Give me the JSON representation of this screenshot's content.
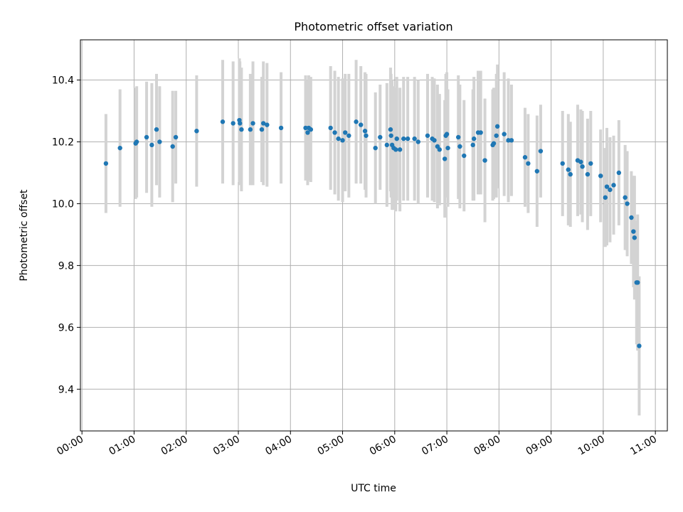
{
  "chart_data": {
    "type": "scatter",
    "title": "Photometric offset variation",
    "xlabel": "UTC time",
    "ylabel": "Photometric offset",
    "xlim": [
      -0.03,
      11.23
    ],
    "ylim": [
      9.265,
      10.53
    ],
    "grid": true,
    "x_unit": "hours (UTC)",
    "xticks": [
      0,
      1,
      2,
      3,
      4,
      5,
      6,
      7,
      8,
      9,
      10,
      11
    ],
    "xtick_labels": [
      "00:00",
      "01:00",
      "02:00",
      "03:00",
      "04:00",
      "05:00",
      "06:00",
      "07:00",
      "08:00",
      "09:00",
      "10:00",
      "11:00"
    ],
    "yticks": [
      9.4,
      9.6,
      9.8,
      10.0,
      10.2,
      10.4
    ],
    "ytick_labels": [
      "9.4",
      "9.6",
      "9.8",
      "10.0",
      "10.2",
      "10.4"
    ],
    "colors": {
      "point": "#1f77b4",
      "errorbar": "#d3d3d3",
      "grid": "#b0b0b0",
      "axes": "#000000"
    },
    "series": [
      {
        "name": "Photometric offset",
        "points": [
          [
            0.46,
            10.13,
            0.16
          ],
          [
            0.73,
            10.18,
            0.19
          ],
          [
            1.03,
            10.195,
            0.18
          ],
          [
            1.05,
            10.2,
            0.18
          ],
          [
            1.24,
            10.215,
            0.18
          ],
          [
            1.34,
            10.19,
            0.2
          ],
          [
            1.43,
            10.24,
            0.18
          ],
          [
            1.49,
            10.2,
            0.18
          ],
          [
            1.74,
            10.185,
            0.18
          ],
          [
            1.8,
            10.215,
            0.15
          ],
          [
            2.2,
            10.235,
            0.18
          ],
          [
            2.7,
            10.265,
            0.2
          ],
          [
            2.9,
            10.26,
            0.2
          ],
          [
            3.02,
            10.27,
            0.2
          ],
          [
            3.03,
            10.26,
            0.2
          ],
          [
            3.06,
            10.24,
            0.2
          ],
          [
            3.23,
            10.24,
            0.18
          ],
          [
            3.28,
            10.26,
            0.2
          ],
          [
            3.45,
            10.24,
            0.17
          ],
          [
            3.48,
            10.26,
            0.2
          ],
          [
            3.55,
            10.255,
            0.2
          ],
          [
            3.82,
            10.245,
            0.18
          ],
          [
            4.29,
            10.245,
            0.17
          ],
          [
            4.33,
            10.23,
            0.17
          ],
          [
            4.35,
            10.245,
            0.17
          ],
          [
            4.39,
            10.24,
            0.17
          ],
          [
            4.77,
            10.245,
            0.2
          ],
          [
            4.85,
            10.23,
            0.2
          ],
          [
            4.92,
            10.21,
            0.2
          ],
          [
            5.0,
            10.205,
            0.2
          ],
          [
            5.05,
            10.23,
            0.19
          ],
          [
            5.12,
            10.22,
            0.2
          ],
          [
            5.26,
            10.265,
            0.2
          ],
          [
            5.35,
            10.255,
            0.19
          ],
          [
            5.43,
            10.235,
            0.19
          ],
          [
            5.45,
            10.22,
            0.2
          ],
          [
            5.63,
            10.18,
            0.18
          ],
          [
            5.72,
            10.215,
            0.17
          ],
          [
            5.85,
            10.19,
            0.2
          ],
          [
            5.92,
            10.24,
            0.2
          ],
          [
            5.93,
            10.22,
            0.2
          ],
          [
            5.95,
            10.19,
            0.21
          ],
          [
            5.98,
            10.18,
            0.2
          ],
          [
            6.02,
            10.175,
            0.2
          ],
          [
            6.04,
            10.21,
            0.2
          ],
          [
            6.1,
            10.175,
            0.2
          ],
          [
            6.17,
            10.21,
            0.2
          ],
          [
            6.25,
            10.21,
            0.2
          ],
          [
            6.38,
            10.21,
            0.2
          ],
          [
            6.45,
            10.2,
            0.2
          ],
          [
            6.63,
            10.22,
            0.2
          ],
          [
            6.72,
            10.21,
            0.2
          ],
          [
            6.76,
            10.205,
            0.2
          ],
          [
            6.82,
            10.185,
            0.2
          ],
          [
            6.86,
            10.175,
            0.18
          ],
          [
            6.96,
            10.145,
            0.19
          ],
          [
            6.98,
            10.22,
            0.2
          ],
          [
            7.0,
            10.225,
            0.2
          ],
          [
            7.02,
            10.18,
            0.19
          ],
          [
            7.22,
            10.215,
            0.2
          ],
          [
            7.25,
            10.185,
            0.2
          ],
          [
            7.33,
            10.155,
            0.18
          ],
          [
            7.5,
            10.19,
            0.18
          ],
          [
            7.52,
            10.21,
            0.2
          ],
          [
            7.6,
            10.23,
            0.2
          ],
          [
            7.65,
            10.23,
            0.2
          ],
          [
            7.73,
            10.14,
            0.2
          ],
          [
            7.88,
            10.19,
            0.18
          ],
          [
            7.9,
            10.195,
            0.18
          ],
          [
            7.95,
            10.22,
            0.2
          ],
          [
            7.97,
            10.25,
            0.2
          ],
          [
            8.1,
            10.225,
            0.2
          ],
          [
            8.18,
            10.205,
            0.2
          ],
          [
            8.24,
            10.205,
            0.18
          ],
          [
            8.5,
            10.15,
            0.16
          ],
          [
            8.56,
            10.13,
            0.16
          ],
          [
            8.73,
            10.105,
            0.18
          ],
          [
            8.8,
            10.17,
            0.15
          ],
          [
            9.22,
            10.13,
            0.17
          ],
          [
            9.33,
            10.11,
            0.18
          ],
          [
            9.37,
            10.095,
            0.17
          ],
          [
            9.51,
            10.14,
            0.18
          ],
          [
            9.57,
            10.135,
            0.17
          ],
          [
            9.6,
            10.12,
            0.18
          ],
          [
            9.7,
            10.095,
            0.18
          ],
          [
            9.76,
            10.13,
            0.17
          ],
          [
            9.95,
            10.09,
            0.15
          ],
          [
            10.04,
            10.02,
            0.16
          ],
          [
            10.07,
            10.055,
            0.19
          ],
          [
            10.13,
            10.045,
            0.17
          ],
          [
            10.2,
            10.06,
            0.16
          ],
          [
            10.3,
            10.1,
            0.17
          ],
          [
            10.42,
            10.02,
            0.17
          ],
          [
            10.46,
            10.0,
            0.17
          ],
          [
            10.54,
            9.955,
            0.15
          ],
          [
            10.58,
            9.91,
            0.18
          ],
          [
            10.6,
            9.89,
            0.2
          ],
          [
            10.64,
            9.745,
            0.2
          ],
          [
            10.66,
            9.745,
            0.22
          ],
          [
            10.69,
            9.54,
            0.225
          ]
        ]
      }
    ]
  }
}
